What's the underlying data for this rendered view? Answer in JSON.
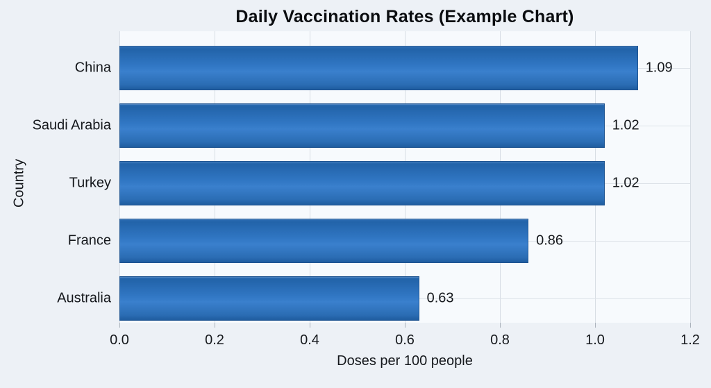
{
  "chart_data": {
    "type": "bar",
    "orientation": "horizontal",
    "title": "Daily Vaccination Rates (Example Chart)",
    "categories": [
      "China",
      "Saudi Arabia",
      "Turkey",
      "France",
      "Australia"
    ],
    "values": [
      1.09,
      1.02,
      1.02,
      0.86,
      0.63
    ],
    "value_labels": [
      "1.09",
      "1.02",
      "1.02",
      "0.86",
      "0.63"
    ],
    "xlabel": "Doses per 100 people",
    "ylabel": "Country",
    "xlim": [
      0,
      1.2
    ],
    "xticks": [
      0.0,
      0.2,
      0.4,
      0.6,
      0.8,
      1.0,
      1.2
    ],
    "xtick_labels": [
      "0.0",
      "0.2",
      "0.4",
      "0.6",
      "0.8",
      "1.0",
      "1.2"
    ],
    "grid": true,
    "legend": null,
    "colors": {
      "bar_fill": "#2f74c0",
      "bar_border": "#1d5390",
      "page_background": "#edf1f6",
      "plot_background": "#f7fafd",
      "gridline": "#d7dde4",
      "text": "#15181c"
    }
  }
}
